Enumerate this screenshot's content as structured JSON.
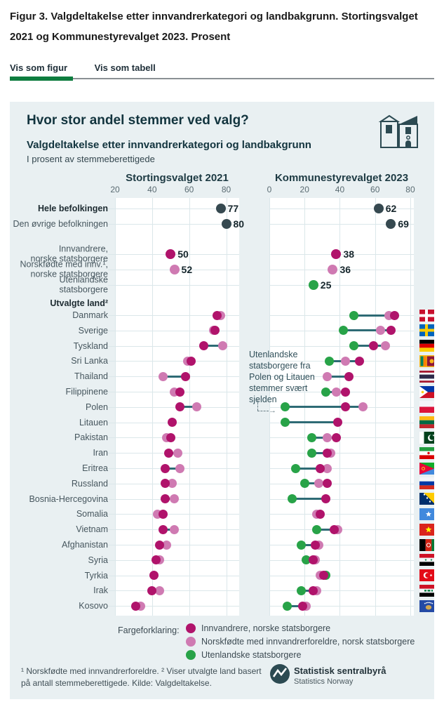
{
  "page": {
    "figure_title": "Figur 3. Valgdeltakelse etter innvandrerkategori og landbakgrunn. Stortingsvalget 2021 og Kommunestyrevalget 2023. Prosent",
    "tabs": [
      {
        "label": "Vis som figur",
        "active": true
      },
      {
        "label": "Vis som tabell",
        "active": false
      }
    ]
  },
  "card": {
    "title": "Hvor stor andel stemmer ved valg?",
    "subtitle": "Valgdeltakelse etter innvandrerkategori og landbakgrunn",
    "note": "I prosent av stemmeberettigede",
    "annotation": "Utenlandske statsborgere fra Polen og Litauen stemmer svært sjelden",
    "legend_label": "Fargeforklaring:",
    "footnote": "¹ Norskfødte med innvandrerforeldre. ² Viser utvalgte land basert på antall stemmeberettigede. Kilde: Valgdeltakelse.",
    "source_org": "Statistisk sentralbyrå",
    "source_org_en": "Statistics Norway"
  },
  "colors": {
    "card_bg": "#e9f0f2",
    "innvandrere": "#b0136b",
    "norskfodte": "#cf7ab2",
    "utenlandske": "#28a348",
    "befolkning": "#364950",
    "connector": "#2e6b75",
    "tab_active_green": "#0e7d3f",
    "heading_teal": "#12343e"
  },
  "chart_data": {
    "type": "dumbbell-dot",
    "panels": [
      {
        "title": "Stortingsvalget 2021",
        "ticks": [
          20,
          40,
          60,
          80
        ],
        "domain": [
          20,
          87
        ]
      },
      {
        "title": "Kommunestyrevalget 2023",
        "ticks": [
          0,
          20,
          40,
          60,
          80
        ],
        "domain": [
          0,
          82
        ]
      }
    ],
    "legend": [
      {
        "key": "innvandrere",
        "label": "Innvandrere, norske statsborgere",
        "color": "#b0136b"
      },
      {
        "key": "norskfodte",
        "label": "Norskfødte med innvandrerforeldre, norsk statsborgere",
        "color": "#cf7ab2"
      },
      {
        "key": "utenlandske",
        "label": "Utenlandske statsborgere",
        "color": "#28a348"
      }
    ],
    "summary_rows": [
      {
        "label": "Hele befolkingen",
        "bold": true,
        "series": "befolkning",
        "v2021": 77,
        "v2023": 62
      },
      {
        "label": "Den øvrige befolkningen",
        "bold": false,
        "series": "befolkning",
        "v2021": 80,
        "v2023": 69
      },
      {
        "label": "Innvandrere,\nnorske statsborgere",
        "bold": false,
        "series": "innvandrere",
        "v2021": 50,
        "v2023": 38
      },
      {
        "label": "Norskfødte med innv.¹,\nnorske statsborgere",
        "bold": false,
        "series": "norskfodte",
        "v2021": 52,
        "v2023": 36
      },
      {
        "label": "Utenlandske statsborgere",
        "bold": false,
        "series": "utenlandske",
        "v2021": null,
        "v2023": 25
      }
    ],
    "group_label": "Utvalgte land²",
    "countries": [
      {
        "name": "Danmark",
        "flag": "dk",
        "y2021": {
          "innvandrere": 75,
          "norskfodte": 77
        },
        "y2023": {
          "utenlandske": 48,
          "innvandrere": 71,
          "norskfodte": 68
        }
      },
      {
        "name": "Sverige",
        "flag": "se",
        "y2021": {
          "innvandrere": 74,
          "norskfodte": 73
        },
        "y2023": {
          "utenlandske": 42,
          "innvandrere": 69,
          "norskfodte": 63
        }
      },
      {
        "name": "Tyskland",
        "flag": "de",
        "y2021": {
          "innvandrere": 68,
          "norskfodte": 78
        },
        "y2023": {
          "utenlandske": 48,
          "innvandrere": 59,
          "norskfodte": 66
        }
      },
      {
        "name": "Sri Lanka",
        "flag": "lk",
        "y2021": {
          "innvandrere": 61,
          "norskfodte": 59
        },
        "y2023": {
          "utenlandske": 34,
          "innvandrere": 51,
          "norskfodte": 43
        }
      },
      {
        "name": "Thailand",
        "flag": "th",
        "y2021": {
          "innvandrere": 58,
          "norskfodte": 46
        },
        "y2023": {
          "utenlandske": null,
          "innvandrere": 45,
          "norskfodte": 33
        }
      },
      {
        "name": "Filippinene",
        "flag": "ph",
        "y2021": {
          "innvandrere": 55,
          "norskfodte": 52
        },
        "y2023": {
          "utenlandske": 32,
          "innvandrere": 43,
          "norskfodte": 38
        }
      },
      {
        "name": "Polen",
        "flag": "pl",
        "y2021": {
          "innvandrere": 55,
          "norskfodte": 64
        },
        "y2023": {
          "utenlandske": 9,
          "innvandrere": 43,
          "norskfodte": 53
        }
      },
      {
        "name": "Litauen",
        "flag": "lt",
        "y2021": {
          "innvandrere": 51,
          "norskfodte": null
        },
        "y2023": {
          "utenlandske": 9,
          "innvandrere": 39,
          "norskfodte": null
        }
      },
      {
        "name": "Pakistan",
        "flag": "pk",
        "y2021": {
          "innvandrere": 50,
          "norskfodte": 48
        },
        "y2023": {
          "utenlandske": 24,
          "innvandrere": 38,
          "norskfodte": 33
        }
      },
      {
        "name": "Iran",
        "flag": "ir",
        "y2021": {
          "innvandrere": 49,
          "norskfodte": 54
        },
        "y2023": {
          "utenlandske": 24,
          "innvandrere": 33,
          "norskfodte": 35
        }
      },
      {
        "name": "Eritrea",
        "flag": "er",
        "y2021": {
          "innvandrere": 47,
          "norskfodte": 55
        },
        "y2023": {
          "utenlandske": 15,
          "innvandrere": 29,
          "norskfodte": 33
        }
      },
      {
        "name": "Russland",
        "flag": "ru",
        "y2021": {
          "innvandrere": 47,
          "norskfodte": 51
        },
        "y2023": {
          "utenlandske": 20,
          "innvandrere": 33,
          "norskfodte": 28
        }
      },
      {
        "name": "Bosnia-Hercegovina",
        "flag": "ba",
        "y2021": {
          "innvandrere": 47,
          "norskfodte": 52
        },
        "y2023": {
          "utenlandske": 13,
          "innvandrere": 32,
          "norskfodte": null
        }
      },
      {
        "name": "Somalia",
        "flag": "so",
        "y2021": {
          "innvandrere": 46,
          "norskfodte": 43
        },
        "y2023": {
          "utenlandske": null,
          "innvandrere": 29,
          "norskfodte": 27
        }
      },
      {
        "name": "Vietnam",
        "flag": "vn",
        "y2021": {
          "innvandrere": 46,
          "norskfodte": 52
        },
        "y2023": {
          "utenlandske": 27,
          "innvandrere": 37,
          "norskfodte": 39
        }
      },
      {
        "name": "Afghanistan",
        "flag": "af",
        "y2021": {
          "innvandrere": 44,
          "norskfodte": 48
        },
        "y2023": {
          "utenlandske": 18,
          "innvandrere": 26,
          "norskfodte": 28
        }
      },
      {
        "name": "Syria",
        "flag": "sy",
        "y2021": {
          "innvandrere": 42,
          "norskfodte": 44
        },
        "y2023": {
          "utenlandske": 21,
          "innvandrere": 25,
          "norskfodte": 26
        }
      },
      {
        "name": "Tyrkia",
        "flag": "tr",
        "y2021": {
          "innvandrere": 41,
          "norskfodte": null
        },
        "y2023": {
          "utenlandske": 32,
          "innvandrere": 31,
          "norskfodte": 29
        }
      },
      {
        "name": "Irak",
        "flag": "iq",
        "y2021": {
          "innvandrere": 40,
          "norskfodte": 44
        },
        "y2023": {
          "utenlandske": 18,
          "innvandrere": 25,
          "norskfodte": 27
        }
      },
      {
        "name": "Kosovo",
        "flag": "xk",
        "y2021": {
          "innvandrere": 31,
          "norskfodte": 34
        },
        "y2023": {
          "utenlandske": 10,
          "innvandrere": 19,
          "norskfodte": 21
        }
      }
    ]
  }
}
